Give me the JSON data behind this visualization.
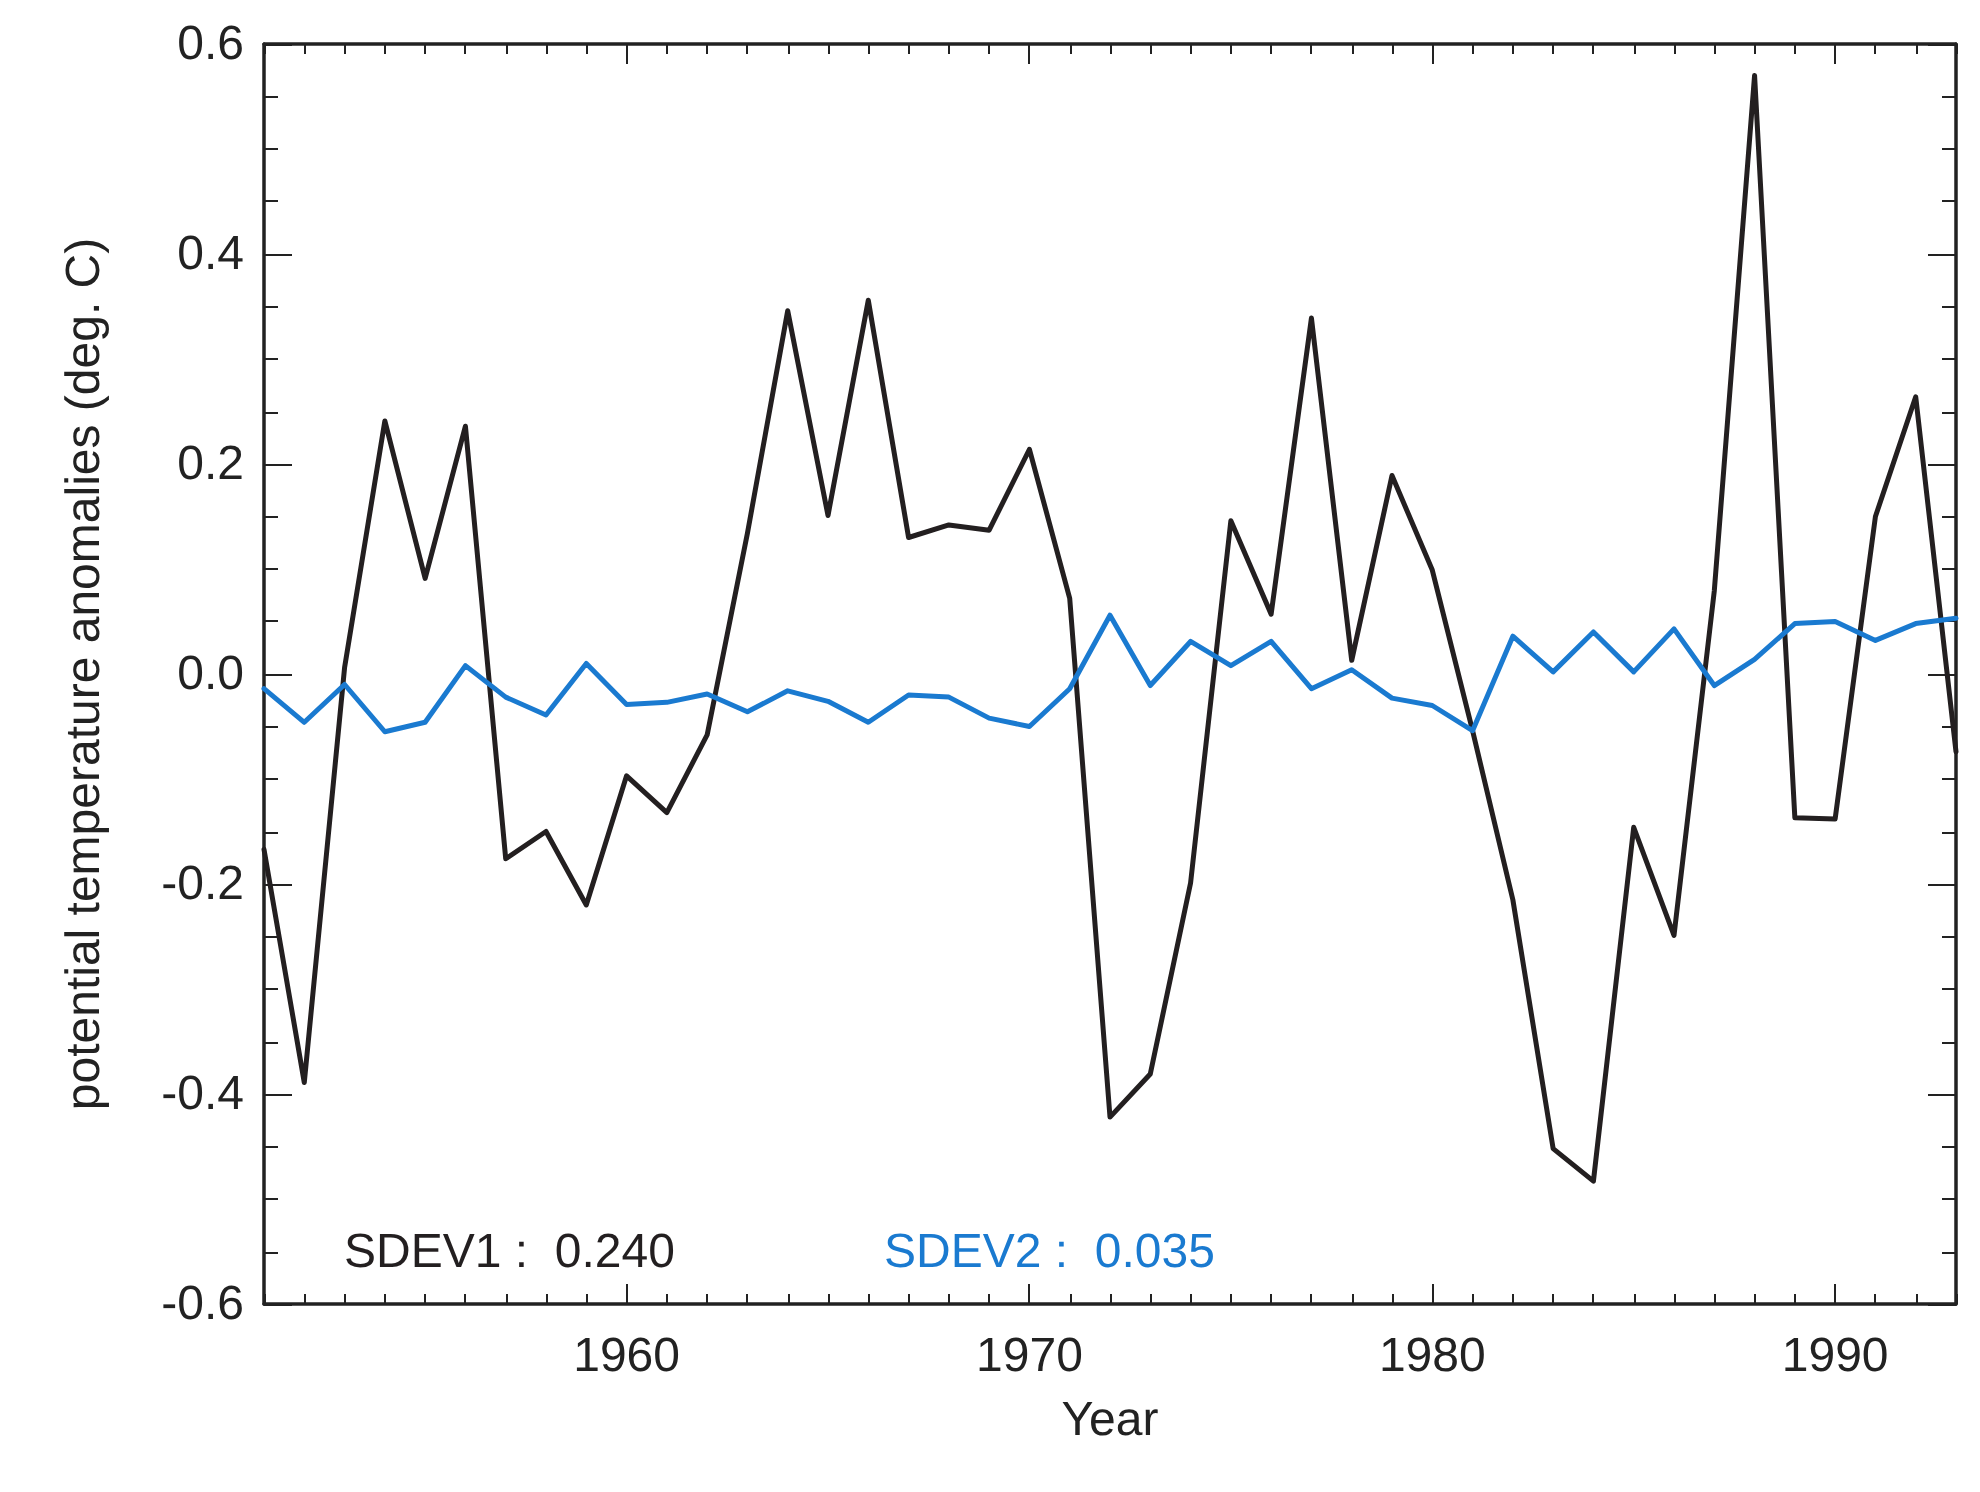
{
  "chart_data": {
    "type": "line",
    "xlabel": "Year",
    "ylabel": "potential temperature anomalies (deg. C)",
    "x": [
      1951,
      1952,
      1953,
      1954,
      1955,
      1956,
      1957,
      1958,
      1959,
      1960,
      1961,
      1962,
      1963,
      1964,
      1965,
      1966,
      1967,
      1968,
      1969,
      1970,
      1971,
      1972,
      1973,
      1974,
      1975,
      1976,
      1977,
      1978,
      1979,
      1980,
      1981,
      1982,
      1983,
      1984,
      1985,
      1986,
      1987,
      1988,
      1989,
      1990,
      1991,
      1992,
      1993
    ],
    "series": [
      {
        "color": "#231f20",
        "values": [
          -0.167,
          -0.389,
          0.006,
          0.241,
          0.091,
          0.236,
          -0.176,
          -0.15,
          -0.22,
          -0.097,
          -0.132,
          -0.058,
          0.134,
          0.346,
          0.151,
          0.356,
          0.13,
          0.142,
          0.137,
          0.214,
          0.072,
          -0.422,
          -0.381,
          -0.199,
          0.146,
          0.057,
          0.339,
          0.013,
          0.189,
          0.099,
          -0.054,
          -0.215,
          -0.452,
          -0.483,
          -0.146,
          -0.249,
          0.079,
          0.57,
          -0.137,
          -0.138,
          0.15,
          0.264,
          -0.074
        ]
      },
      {
        "color": "#1a7ad0",
        "values": [
          -0.014,
          -0.046,
          -0.01,
          -0.055,
          -0.046,
          0.008,
          -0.022,
          -0.039,
          0.01,
          -0.029,
          -0.027,
          -0.019,
          -0.036,
          -0.016,
          -0.026,
          -0.046,
          -0.02,
          -0.022,
          -0.042,
          -0.05,
          -0.014,
          0.056,
          -0.011,
          0.031,
          0.008,
          0.031,
          -0.014,
          0.004,
          -0.023,
          -0.03,
          -0.054,
          0.036,
          0.002,
          0.04,
          0.002,
          0.043,
          -0.011,
          0.014,
          0.048,
          0.05,
          0.032,
          0.048,
          0.053
        ]
      }
    ],
    "annotations": [
      "SDEV1 :  0.240",
      "SDEV2 :  0.035"
    ],
    "xlim": [
      1951,
      1993
    ],
    "xticks": [
      1960,
      1970,
      1980,
      1990
    ],
    "ylim": [
      -0.6,
      0.6
    ],
    "yticks": [
      {
        "value": -0.6,
        "label": "-0.6"
      },
      {
        "value": -0.4,
        "label": "-0.4"
      },
      {
        "value": -0.2,
        "label": "-0.2"
      },
      {
        "value": 0,
        "label": "0.0"
      },
      0.2,
      0.4,
      0.6
    ],
    "grid": false,
    "marker": "none",
    "line_style": "solid"
  }
}
